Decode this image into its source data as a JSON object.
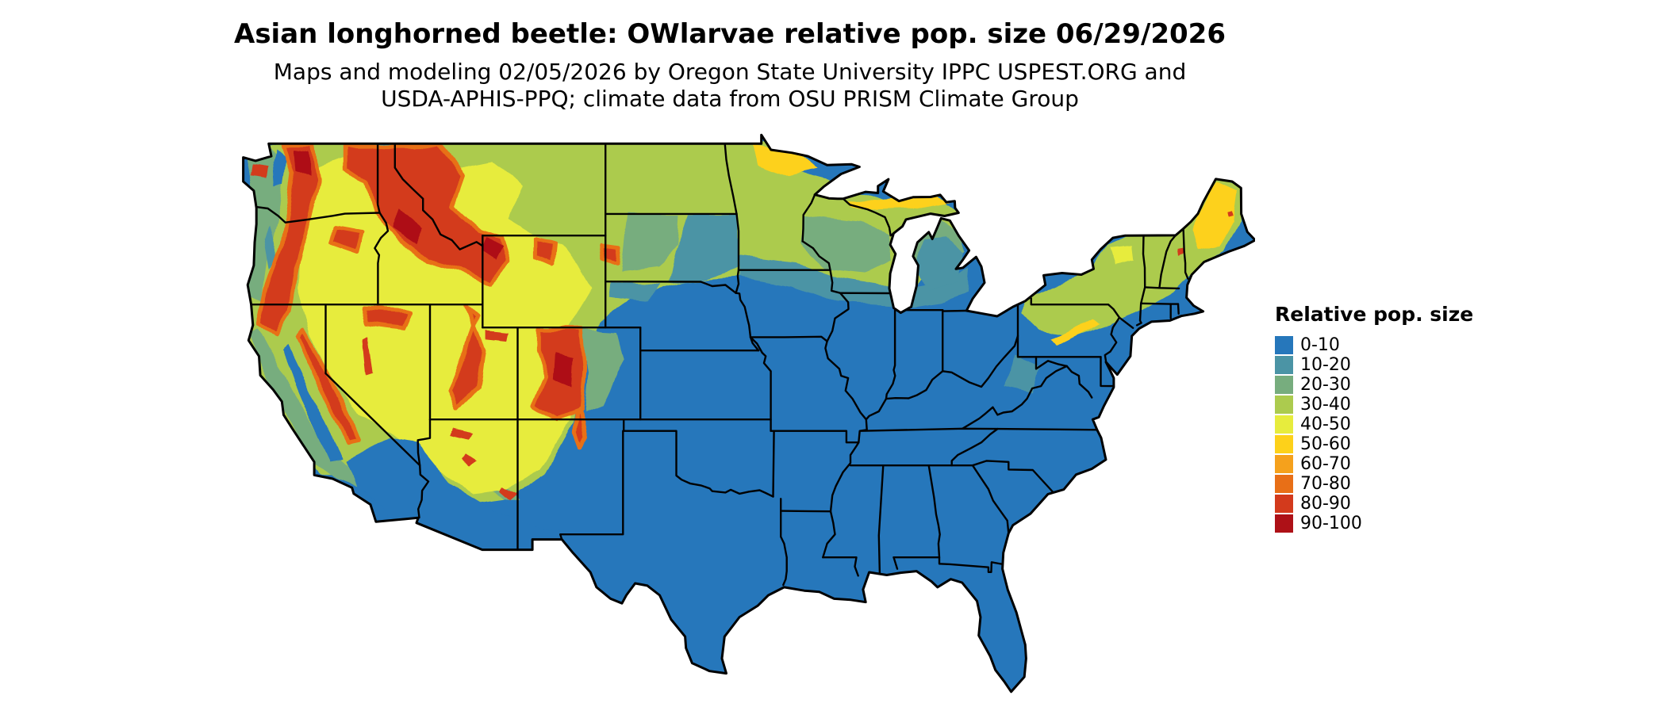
{
  "header": {
    "title": "Asian longhorned beetle: OWlarvae relative pop. size 06/29/2026",
    "subtitle_line1": "Maps and modeling 02/05/2026 by Oregon State University IPPC USPEST.ORG and",
    "subtitle_line2": "USDA-APHIS-PPQ; climate data from OSU PRISM Climate Group"
  },
  "map": {
    "region_label": "Continental United States",
    "kind": "choropleth-raster",
    "border_color": "#000000",
    "background_color": "#ffffff"
  },
  "legend": {
    "title": "Relative pop. size",
    "entries": [
      {
        "label": "0-10",
        "color": "#2677bb"
      },
      {
        "label": "10-20",
        "color": "#4b94a5"
      },
      {
        "label": "20-30",
        "color": "#77ad7e"
      },
      {
        "label": "30-40",
        "color": "#accb4e"
      },
      {
        "label": "40-50",
        "color": "#e7ec3d"
      },
      {
        "label": "50-60",
        "color": "#fdd11a"
      },
      {
        "label": "60-70",
        "color": "#f5a11c"
      },
      {
        "label": "70-80",
        "color": "#e86f17"
      },
      {
        "label": "80-90",
        "color": "#d33a1c"
      },
      {
        "label": "90-100",
        "color": "#ae1117"
      }
    ]
  }
}
